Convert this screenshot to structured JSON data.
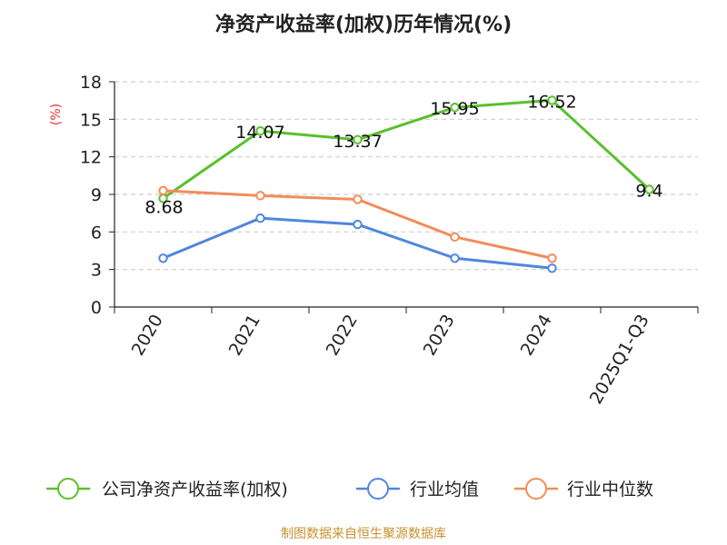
{
  "chart_data": {
    "type": "line",
    "title": "净资产收益率(加权)历年情况(%)",
    "ylabel": "(%)",
    "xlabel": "",
    "categories": [
      "2020",
      "2021",
      "2022",
      "2023",
      "2024",
      "2025Q1-Q3"
    ],
    "ylim": [
      0,
      18
    ],
    "yticks": [
      0,
      3,
      6,
      9,
      12,
      15,
      18
    ],
    "grid": "horizontal-dashed",
    "legend_position": "bottom",
    "series": [
      {
        "name": "公司净资产收益率(加权)",
        "color": "#5ac02c",
        "values": [
          8.68,
          14.07,
          13.37,
          15.95,
          16.52,
          9.4
        ],
        "labels": [
          "8.68",
          "14.07",
          "13.37",
          "15.95",
          "16.52",
          "9.4"
        ]
      },
      {
        "name": "行业均值",
        "color": "#4f86df",
        "values": [
          3.9,
          7.1,
          6.6,
          3.9,
          3.1,
          null
        ]
      },
      {
        "name": "行业中位数",
        "color": "#f28c59",
        "values": [
          9.3,
          8.9,
          8.6,
          5.6,
          3.9,
          null
        ]
      }
    ],
    "source": "制图数据来自恒生聚源数据库"
  }
}
